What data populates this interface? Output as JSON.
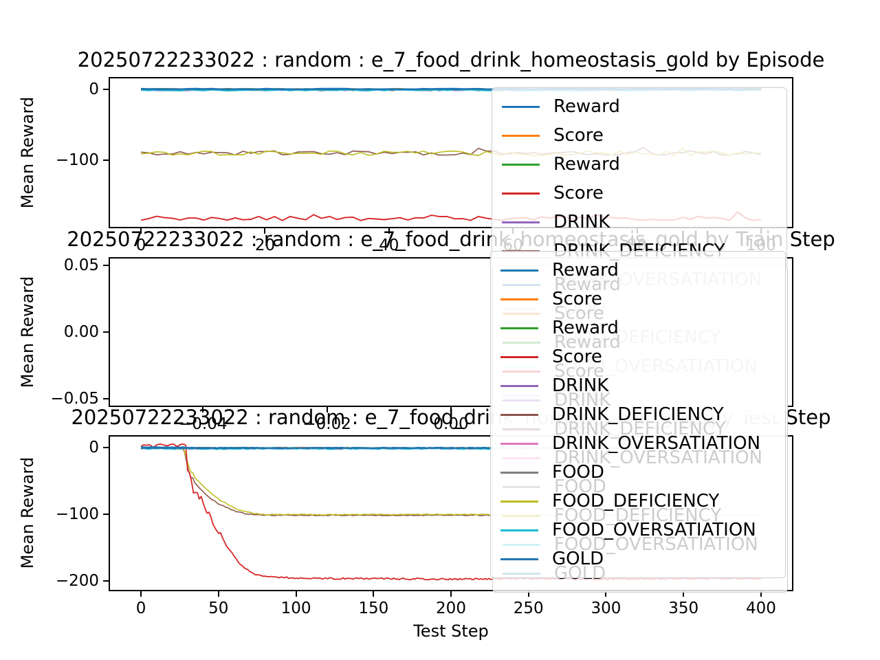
{
  "figure": {
    "background": "#ffffff",
    "run_id": "20250722233022",
    "policy": "random",
    "environment": "e_7_food_drink_homeostasis_gold"
  },
  "legend": {
    "entries": [
      {
        "label": "Reward",
        "color": "#1f77b4"
      },
      {
        "label": "Score",
        "color": "#ff7f0e"
      },
      {
        "label": "Reward",
        "color": "#2ca02c"
      },
      {
        "label": "Score",
        "color": "#d62728"
      },
      {
        "label": "DRINK",
        "color": "#9467bd"
      },
      {
        "label": "DRINK_DEFICIENCY",
        "color": "#8c564b"
      },
      {
        "label": "DRINK_OVERSATIATION",
        "color": "#e377c2"
      },
      {
        "label": "FOOD",
        "color": "#7f7f7f"
      },
      {
        "label": "FOOD_DEFICIENCY",
        "color": "#bcbd22"
      },
      {
        "label": "FOOD_OVERSATIATION",
        "color": "#17becf"
      },
      {
        "label": "GOLD",
        "color": "#1f77b4"
      }
    ]
  },
  "chart_data": [
    {
      "type": "line",
      "title": "20250722233022 : random : e_7_food_drink_homeostasis_gold by Episode",
      "xlabel": "",
      "ylabel": "Mean Reward",
      "xlim": [
        -5,
        105
      ],
      "ylim": [
        -194,
        15
      ],
      "xticks": [
        {
          "v": 0,
          "label": "0"
        },
        {
          "v": 20,
          "label": "20"
        },
        {
          "v": 40,
          "label": "40"
        },
        {
          "v": 60,
          "label": "60"
        },
        {
          "v": 80,
          "label": "80"
        },
        {
          "v": 100,
          "label": "100"
        }
      ],
      "yticks": [
        {
          "v": 0,
          "label": "0"
        },
        {
          "v": -100,
          "label": "−100"
        }
      ],
      "legend_position": "upper-right",
      "series": [
        {
          "name": "Score",
          "color": "#ff7f0e",
          "lw": 1.6,
          "gen": {
            "kind": "noisy",
            "x0": 0,
            "x1": 100,
            "n": 80,
            "base": 0.3,
            "amp": 0.4,
            "seed": 11
          }
        },
        {
          "name": "Reward",
          "color": "#2ca02c",
          "lw": 1.6,
          "gen": {
            "kind": "noisy",
            "x0": 0,
            "x1": 100,
            "n": 80,
            "base": 0.2,
            "amp": 0.4,
            "seed": 12
          }
        },
        {
          "name": "DRINK",
          "color": "#9467bd",
          "lw": 1.6,
          "gen": {
            "kind": "noisy",
            "x0": 0,
            "x1": 100,
            "n": 80,
            "base": -0.8,
            "amp": 1.6,
            "seed": 13
          }
        },
        {
          "name": "DRINK_OVERSATIATION",
          "color": "#e377c2",
          "lw": 1.6,
          "gen": {
            "kind": "noisy",
            "x0": 0,
            "x1": 100,
            "n": 80,
            "base": -0.4,
            "amp": 0.8,
            "seed": 14
          }
        },
        {
          "name": "FOOD",
          "color": "#7f7f7f",
          "lw": 1.6,
          "gen": {
            "kind": "noisy",
            "x0": 0,
            "x1": 100,
            "n": 80,
            "base": -1.0,
            "amp": 1.6,
            "seed": 15
          }
        },
        {
          "name": "FOOD_OVERSATIATION",
          "color": "#17becf",
          "lw": 1.6,
          "gen": {
            "kind": "noisy",
            "x0": 0,
            "x1": 100,
            "n": 80,
            "base": -1.8,
            "amp": 0.9,
            "seed": 16
          }
        },
        {
          "name": "DRINK_DEFICIENCY",
          "color": "#8c564b",
          "lw": 1.6,
          "gen": {
            "kind": "noisy",
            "x0": 0,
            "x1": 100,
            "n": 80,
            "base": -90,
            "amp": 3.2,
            "spike_p": 0.05,
            "spike": 6,
            "seed": 17
          }
        },
        {
          "name": "FOOD_DEFICIENCY",
          "color": "#bcbd22",
          "lw": 1.6,
          "gen": {
            "kind": "noisy",
            "x0": 0,
            "x1": 100,
            "n": 80,
            "base": -90.5,
            "amp": 3.5,
            "spike_p": 0.07,
            "spike": 12,
            "seed": 18
          }
        },
        {
          "name": "Score",
          "color": "#d62728",
          "lw": 1.9,
          "gen": {
            "kind": "noisy",
            "x0": 0,
            "x1": 100,
            "n": 80,
            "base": -182,
            "amp": 3.0,
            "spike_p": 0.07,
            "spike": 8,
            "seed": 19
          }
        },
        {
          "name": "Reward",
          "color": "#1f77b4",
          "lw": 2.6,
          "gen": {
            "kind": "noisy",
            "x0": 0,
            "x1": 100,
            "n": 80,
            "base": 0,
            "amp": 0.5,
            "seed": 20
          }
        },
        {
          "name": "GOLD",
          "color": "#1f77b4",
          "lw": 1.6,
          "gen": {
            "kind": "noisy",
            "x0": 0,
            "x1": 100,
            "n": 80,
            "base": -0.6,
            "amp": 0.6,
            "seed": 21
          }
        }
      ]
    },
    {
      "type": "line",
      "title": "20250722233022 : random : e_7_food_drink_homeostasis_gold by Train Step",
      "xlabel": "",
      "ylabel": "Mean Reward",
      "xlim": [
        -0.055,
        0.055
      ],
      "ylim": [
        -0.055,
        0.055
      ],
      "xticks": [
        {
          "v": -0.04,
          "label": "−0.04"
        },
        {
          "v": -0.02,
          "label": "−0.02"
        },
        {
          "v": 0,
          "label": "0.00"
        },
        {
          "v": 0.02,
          "label": "0.02"
        },
        {
          "v": 0.04,
          "label": "0.04"
        }
      ],
      "yticks": [
        {
          "v": 0.05,
          "label": "0.05"
        },
        {
          "v": 0,
          "label": "0.00"
        },
        {
          "v": -0.05,
          "label": "−0.05"
        }
      ],
      "legend_position": "upper-right",
      "series": []
    },
    {
      "type": "line",
      "title": "20250722233022 : random : e_7_food_drink_homeostasis_gold by Test Step",
      "xlabel": "Test Step",
      "ylabel": "Mean Reward",
      "xlim": [
        -20,
        420
      ],
      "ylim": [
        -213,
        17
      ],
      "xticks": [
        {
          "v": 0,
          "label": "0"
        },
        {
          "v": 50,
          "label": "50"
        },
        {
          "v": 100,
          "label": "100"
        },
        {
          "v": 150,
          "label": "150"
        },
        {
          "v": 200,
          "label": "200"
        },
        {
          "v": 250,
          "label": "250"
        },
        {
          "v": 300,
          "label": "300"
        },
        {
          "v": 350,
          "label": "350"
        },
        {
          "v": 400,
          "label": "400"
        }
      ],
      "yticks": [
        {
          "v": 0,
          "label": "0"
        },
        {
          "v": -100,
          "label": "−100"
        },
        {
          "v": -200,
          "label": "−200"
        }
      ],
      "legend_position": "upper-right",
      "series": [
        {
          "name": "Score",
          "color": "#ff7f0e",
          "lw": 1.5,
          "gen": {
            "kind": "noisy",
            "x0": 0,
            "x1": 400,
            "n": 220,
            "base": 0.4,
            "amp": 0.5,
            "seed": 31
          }
        },
        {
          "name": "Reward",
          "color": "#2ca02c",
          "lw": 1.5,
          "gen": {
            "kind": "noisy",
            "x0": 0,
            "x1": 400,
            "n": 220,
            "base": 0.2,
            "amp": 0.4,
            "seed": 32
          }
        },
        {
          "name": "DRINK",
          "color": "#9467bd",
          "lw": 1.5,
          "gen": {
            "kind": "noisy",
            "x0": 0,
            "x1": 400,
            "n": 220,
            "base": -0.8,
            "amp": 1.2,
            "seed": 33
          }
        },
        {
          "name": "DRINK_OVERSATIATION",
          "color": "#e377c2",
          "lw": 1.5,
          "gen": {
            "kind": "noisy",
            "x0": 0,
            "x1": 400,
            "n": 220,
            "base": -0.3,
            "amp": 0.7,
            "seed": 34
          }
        },
        {
          "name": "FOOD",
          "color": "#7f7f7f",
          "lw": 1.5,
          "gen": {
            "kind": "noisy",
            "x0": 0,
            "x1": 400,
            "n": 220,
            "base": -0.8,
            "amp": 1.2,
            "seed": 35
          }
        },
        {
          "name": "FOOD_OVERSATIATION",
          "color": "#17becf",
          "lw": 1.5,
          "gen": {
            "kind": "noisy",
            "x0": 0,
            "x1": 400,
            "n": 220,
            "base": -1.5,
            "amp": 0.8,
            "seed": 36
          }
        },
        {
          "name": "DRINK_DEFICIENCY",
          "color": "#8c564b",
          "lw": 1.6,
          "gen": {
            "kind": "piecewise",
            "n": 300,
            "amp": 0.7,
            "seed": 37,
            "anchors": [
              [
                0,
                0
              ],
              [
                27,
                0
              ],
              [
                28,
                -5
              ],
              [
                29,
                -15
              ],
              [
                30,
                -28
              ],
              [
                31,
                -38
              ],
              [
                32,
                -44
              ],
              [
                33,
                -42
              ],
              [
                34,
                -50
              ],
              [
                36,
                -56
              ],
              [
                38,
                -61
              ],
              [
                40,
                -66
              ],
              [
                42,
                -70
              ],
              [
                45,
                -76
              ],
              [
                48,
                -81
              ],
              [
                51,
                -85
              ],
              [
                54,
                -88
              ],
              [
                57,
                -91
              ],
              [
                60,
                -94
              ],
              [
                64,
                -97
              ],
              [
                68,
                -99
              ],
              [
                72,
                -100
              ],
              [
                80,
                -101
              ],
              [
                400,
                -101
              ]
            ]
          }
        },
        {
          "name": "FOOD_DEFICIENCY",
          "color": "#bcbd22",
          "lw": 1.6,
          "gen": {
            "kind": "piecewise",
            "n": 300,
            "amp": 0.7,
            "seed": 38,
            "anchors": [
              [
                0,
                0
              ],
              [
                27,
                0
              ],
              [
                28,
                -4
              ],
              [
                29,
                -12
              ],
              [
                30,
                -22
              ],
              [
                31,
                -30
              ],
              [
                32,
                -36
              ],
              [
                33,
                -34
              ],
              [
                34,
                -42
              ],
              [
                36,
                -48
              ],
              [
                38,
                -53
              ],
              [
                40,
                -57
              ],
              [
                42,
                -62
              ],
              [
                45,
                -68
              ],
              [
                48,
                -73
              ],
              [
                51,
                -78
              ],
              [
                54,
                -82
              ],
              [
                57,
                -86
              ],
              [
                60,
                -90
              ],
              [
                64,
                -94
              ],
              [
                68,
                -96
              ],
              [
                72,
                -98
              ],
              [
                80,
                -100
              ],
              [
                400,
                -100
              ]
            ]
          }
        },
        {
          "name": "Score",
          "color": "#d62728",
          "lw": 1.8,
          "gen": {
            "kind": "piecewise",
            "n": 320,
            "amp": 1.2,
            "seed": 39,
            "anchors": [
              [
                0,
                3
              ],
              [
                4,
                5
              ],
              [
                8,
                2
              ],
              [
                12,
                5
              ],
              [
                16,
                3
              ],
              [
                20,
                6
              ],
              [
                24,
                3
              ],
              [
                27,
                5
              ],
              [
                29,
                4
              ],
              [
                30,
                -35
              ],
              [
                31,
                -30
              ],
              [
                32,
                -55
              ],
              [
                33,
                -48
              ],
              [
                34,
                -70
              ],
              [
                36,
                -65
              ],
              [
                38,
                -78
              ],
              [
                39,
                -72
              ],
              [
                41,
                -90
              ],
              [
                43,
                -100
              ],
              [
                44,
                -96
              ],
              [
                46,
                -112
              ],
              [
                48,
                -120
              ],
              [
                50,
                -128
              ],
              [
                51,
                -124
              ],
              [
                53,
                -138
              ],
              [
                55,
                -146
              ],
              [
                57,
                -152
              ],
              [
                59,
                -158
              ],
              [
                61,
                -166
              ],
              [
                63,
                -172
              ],
              [
                66,
                -179
              ],
              [
                69,
                -184
              ],
              [
                72,
                -188
              ],
              [
                76,
                -191
              ],
              [
                80,
                -193
              ],
              [
                90,
                -194
              ],
              [
                110,
                -196
              ],
              [
                150,
                -196
              ],
              [
                200,
                -197
              ],
              [
                250,
                -196
              ],
              [
                300,
                -197
              ],
              [
                350,
                -196
              ],
              [
                400,
                -196
              ]
            ]
          }
        },
        {
          "name": "Reward",
          "color": "#1f77b4",
          "lw": 2.4,
          "gen": {
            "kind": "piecewise",
            "n": 220,
            "amp": 0.4,
            "seed": 40,
            "anchors": [
              [
                0,
                1
              ],
              [
                27,
                1
              ],
              [
                32,
                0
              ],
              [
                400,
                0
              ]
            ]
          }
        },
        {
          "name": "GOLD",
          "color": "#1f77b4",
          "lw": 1.5,
          "gen": {
            "kind": "noisy",
            "x0": 0,
            "x1": 400,
            "n": 220,
            "base": -0.8,
            "amp": 0.5,
            "seed": 41
          }
        }
      ]
    }
  ]
}
